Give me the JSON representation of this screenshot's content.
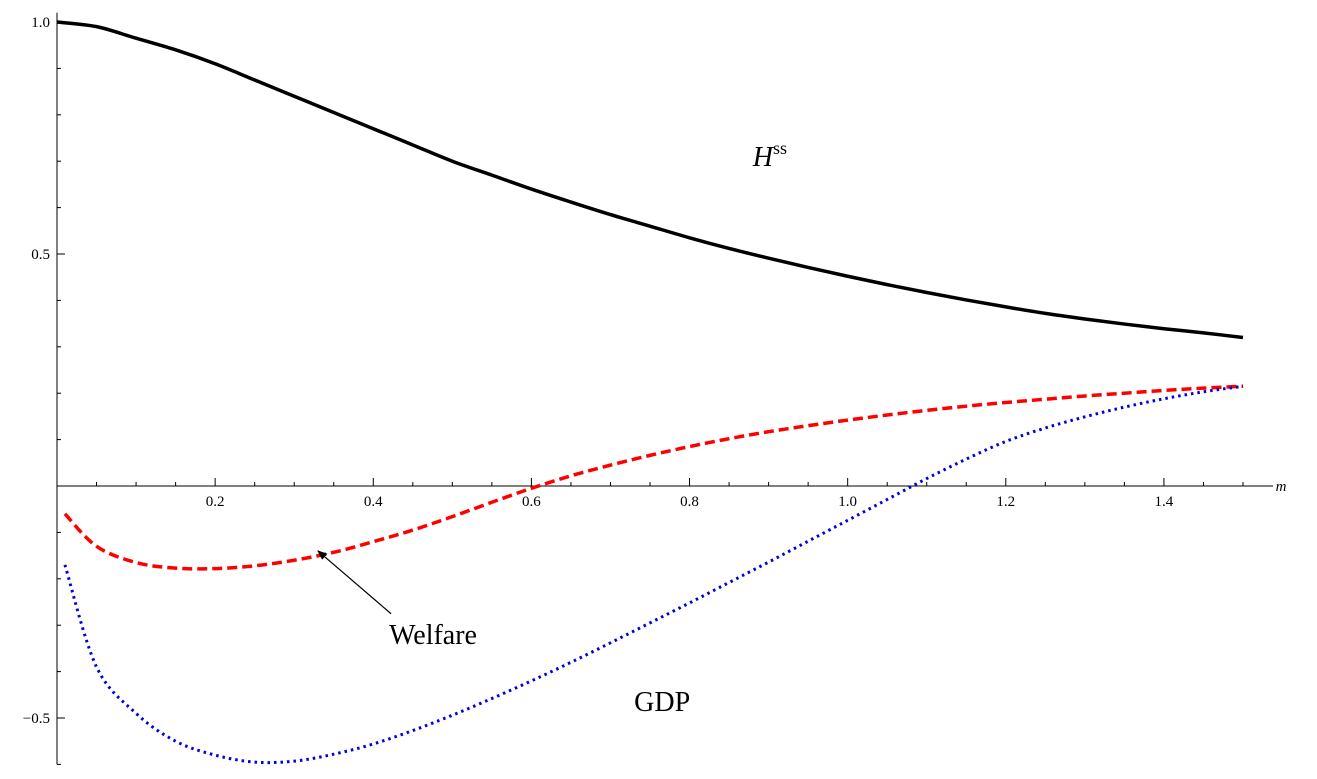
{
  "chart_data": {
    "type": "line",
    "xlabel": "m",
    "xlim": [
      0,
      1.5
    ],
    "ylim": [
      -0.6,
      1.02
    ],
    "grid": false,
    "x_ticks": [
      {
        "value": 0.2,
        "label": "0.2"
      },
      {
        "value": 0.4,
        "label": "0.4"
      },
      {
        "value": 0.6,
        "label": "0.6"
      },
      {
        "value": 0.8,
        "label": "0.8"
      },
      {
        "value": 1.0,
        "label": "1.0"
      },
      {
        "value": 1.2,
        "label": "1.2"
      },
      {
        "value": 1.4,
        "label": "1.4"
      }
    ],
    "y_ticks": [
      {
        "value": 1.0,
        "label": "1.0"
      },
      {
        "value": 0.5,
        "label": "0.5"
      },
      {
        "value": -0.5,
        "label": "−0.5"
      }
    ],
    "x": [
      0,
      0.05,
      0.1,
      0.15,
      0.2,
      0.25,
      0.3,
      0.35,
      0.4,
      0.45,
      0.5,
      0.55,
      0.6,
      0.65,
      0.7,
      0.75,
      0.8,
      0.85,
      0.9,
      0.95,
      1.0,
      1.05,
      1.1,
      1.15,
      1.2,
      1.25,
      1.3,
      1.35,
      1.4,
      1.45,
      1.5
    ],
    "series": [
      {
        "style": "solid",
        "color": "#000000",
        "values": [
          1.0,
          0.99,
          0.965,
          0.94,
          0.91,
          0.875,
          0.84,
          0.805,
          0.77,
          0.735,
          0.7,
          0.67,
          0.64,
          0.612,
          0.585,
          0.56,
          0.535,
          0.512,
          0.491,
          0.471,
          0.452,
          0.434,
          0.417,
          0.401,
          0.386,
          0.372,
          0.36,
          0.349,
          0.339,
          0.33,
          0.32
        ]
      },
      {
        "style": "dashed",
        "color": "#ff0000",
        "x": [
          0.01,
          0.05,
          0.1,
          0.15,
          0.2,
          0.25,
          0.3,
          0.35,
          0.4,
          0.45,
          0.5,
          0.55,
          0.6,
          0.65,
          0.7,
          0.75,
          0.8,
          0.85,
          0.9,
          0.95,
          1.0,
          1.05,
          1.1,
          1.15,
          1.2,
          1.25,
          1.3,
          1.35,
          1.4,
          1.45,
          1.5
        ],
        "values": [
          -0.06,
          -0.13,
          -0.165,
          -0.177,
          -0.178,
          -0.172,
          -0.16,
          -0.143,
          -0.12,
          -0.095,
          -0.066,
          -0.035,
          -0.005,
          0.022,
          0.045,
          0.066,
          0.085,
          0.102,
          0.117,
          0.13,
          0.142,
          0.153,
          0.163,
          0.172,
          0.18,
          0.187,
          0.194,
          0.2,
          0.206,
          0.211,
          0.215
        ]
      },
      {
        "style": "dotted",
        "color": "#0000dd",
        "x": [
          0.01,
          0.05,
          0.1,
          0.15,
          0.2,
          0.25,
          0.3,
          0.35,
          0.4,
          0.45,
          0.5,
          0.55,
          0.6,
          0.65,
          0.7,
          0.75,
          0.8,
          0.85,
          0.9,
          0.95,
          1.0,
          1.05,
          1.1,
          1.15,
          1.2,
          1.25,
          1.3,
          1.35,
          1.4,
          1.45,
          1.5
        ],
        "values": [
          -0.17,
          -0.39,
          -0.49,
          -0.55,
          -0.58,
          -0.595,
          -0.593,
          -0.578,
          -0.556,
          -0.527,
          -0.494,
          -0.458,
          -0.42,
          -0.38,
          -0.338,
          -0.295,
          -0.252,
          -0.208,
          -0.164,
          -0.119,
          -0.074,
          -0.029,
          0.016,
          0.058,
          0.096,
          0.125,
          0.149,
          0.17,
          0.188,
          0.203,
          0.215
        ]
      }
    ],
    "annotations": [
      {
        "id": "hss",
        "base": "H",
        "sup": "ss",
        "x": 0.88,
        "y": 0.69
      },
      {
        "id": "welfare",
        "text": "Welfare",
        "x": 0.42,
        "y": -0.34,
        "arrow_to": [
          0.33,
          -0.14
        ]
      },
      {
        "id": "gdp",
        "text": "GDP",
        "x": 0.73,
        "y": -0.485
      }
    ]
  }
}
